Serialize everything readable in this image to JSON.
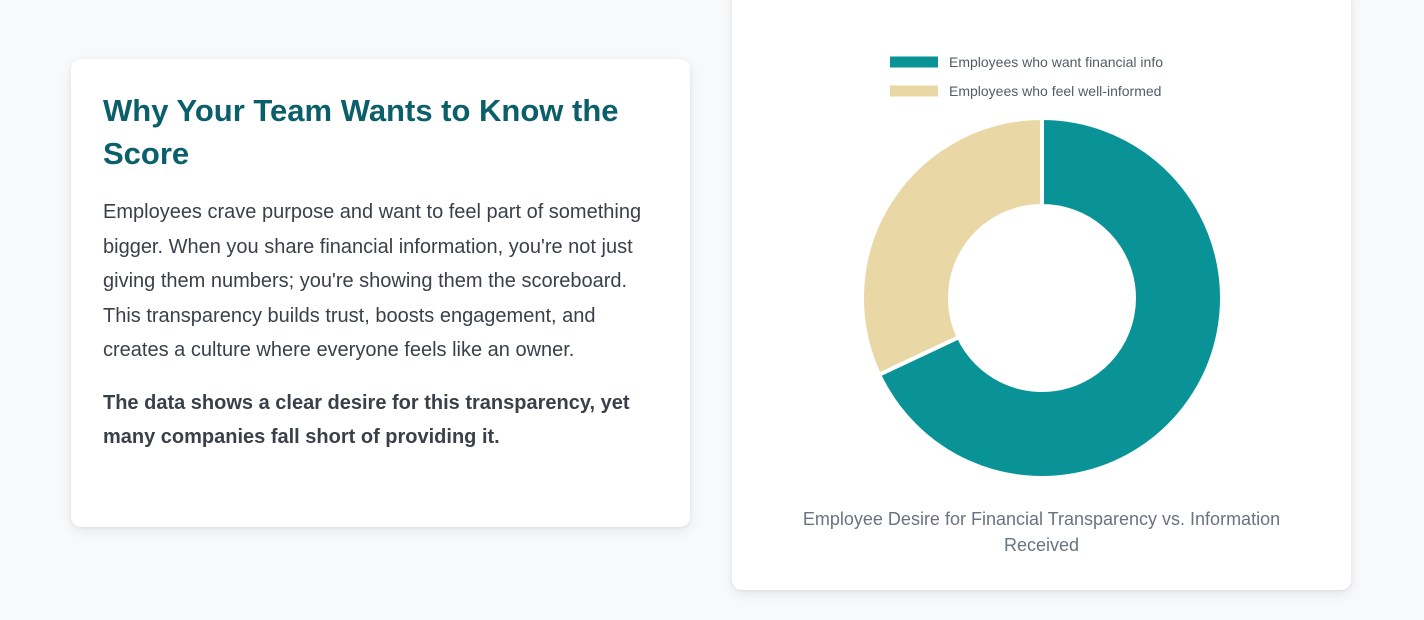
{
  "info": {
    "title": "Why Your Team Wants to Know the Score",
    "body": "Employees crave purpose and want to feel part of something bigger. When you share financial information, you're not just giving them numbers; you're showing them the scoreboard. This transparency builds trust, boosts engagement, and creates a culture where everyone feels like an owner.",
    "emphasis": "The data shows a clear desire for this transparency, yet many companies fall short of providing it."
  },
  "chart_data": {
    "type": "pie",
    "variant": "doughnut",
    "title": "Employee Desire for Financial Transparency vs. Information Received",
    "legend_position": "top",
    "slices": [
      {
        "label": "Employees who want financial info",
        "value": 68,
        "color": "#0a9396"
      },
      {
        "label": "Employees who feel well-informed",
        "value": 32,
        "color": "#e9d8a6"
      }
    ]
  }
}
